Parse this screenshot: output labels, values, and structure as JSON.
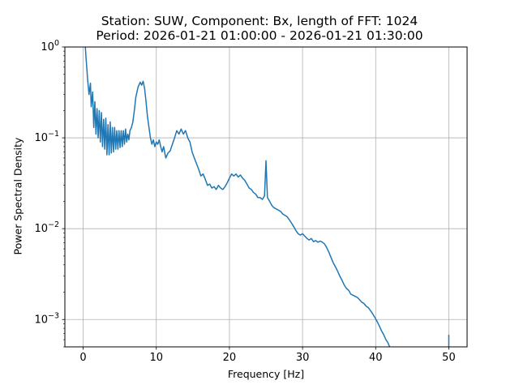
{
  "chart_data": {
    "type": "line",
    "title": "Station: SUW, Component: Bx, length of FFT: 1024",
    "subtitle": "Period: 2026-01-21 01:00:00 - 2026-01-21 01:30:00",
    "xlabel": "Frequency [Hz]",
    "ylabel": "Power Spectral Density",
    "xlim": [
      -2.5,
      52.5
    ],
    "ylim": [
      0.0005,
      1
    ],
    "yscale": "log",
    "grid": true,
    "x_ticks": [
      {
        "value": 0,
        "label": "0"
      },
      {
        "value": 10,
        "label": "10"
      },
      {
        "value": 20,
        "label": "20"
      },
      {
        "value": 30,
        "label": "30"
      },
      {
        "value": 40,
        "label": "40"
      },
      {
        "value": 50,
        "label": "50"
      }
    ],
    "y_ticks": [
      {
        "value": 1,
        "base": "10",
        "exp": "0"
      },
      {
        "value": 0.1,
        "base": "10",
        "exp": "−1"
      },
      {
        "value": 0.01,
        "base": "10",
        "exp": "−2"
      },
      {
        "value": 0.001,
        "base": "10",
        "exp": "−3"
      }
    ],
    "color": "#1f77b4",
    "series": [
      {
        "segments": [
          [
            [
              0.3,
              1.0
            ],
            [
              0.4,
              0.75
            ],
            [
              0.6,
              0.45
            ],
            [
              0.8,
              0.3
            ],
            [
              1.0,
              0.4
            ],
            [
              1.1,
              0.22
            ],
            [
              1.3,
              0.32
            ],
            [
              1.45,
              0.13
            ],
            [
              1.6,
              0.25
            ],
            [
              1.75,
              0.11
            ],
            [
              1.9,
              0.21
            ],
            [
              2.05,
              0.1
            ],
            [
              2.2,
              0.2
            ],
            [
              2.35,
              0.09
            ],
            [
              2.5,
              0.19
            ],
            [
              2.65,
              0.08
            ],
            [
              2.8,
              0.16
            ],
            [
              2.95,
              0.075
            ],
            [
              3.1,
              0.165
            ],
            [
              3.25,
              0.065
            ],
            [
              3.4,
              0.14
            ],
            [
              3.55,
              0.065
            ],
            [
              3.7,
              0.15
            ],
            [
              3.85,
              0.068
            ],
            [
              4.0,
              0.13
            ],
            [
              4.15,
              0.07
            ],
            [
              4.3,
              0.13
            ],
            [
              4.45,
              0.075
            ],
            [
              4.6,
              0.12
            ],
            [
              4.75,
              0.075
            ],
            [
              4.9,
              0.12
            ],
            [
              5.05,
              0.078
            ],
            [
              5.2,
              0.12
            ],
            [
              5.35,
              0.08
            ],
            [
              5.5,
              0.12
            ],
            [
              5.65,
              0.085
            ],
            [
              5.8,
              0.125
            ],
            [
              5.95,
              0.09
            ],
            [
              6.1,
              0.11
            ],
            [
              6.25,
              0.095
            ],
            [
              6.4,
              0.12
            ],
            [
              6.6,
              0.13
            ],
            [
              6.8,
              0.15
            ],
            [
              7.0,
              0.2
            ],
            [
              7.2,
              0.28
            ],
            [
              7.5,
              0.36
            ],
            [
              7.8,
              0.41
            ],
            [
              8.0,
              0.38
            ],
            [
              8.2,
              0.42
            ],
            [
              8.4,
              0.35
            ],
            [
              8.6,
              0.25
            ],
            [
              8.8,
              0.17
            ],
            [
              9.0,
              0.13
            ],
            [
              9.2,
              0.1
            ],
            [
              9.4,
              0.085
            ],
            [
              9.6,
              0.095
            ],
            [
              9.8,
              0.08
            ],
            [
              10.0,
              0.09
            ],
            [
              10.2,
              0.085
            ],
            [
              10.4,
              0.095
            ],
            [
              10.6,
              0.08
            ],
            [
              10.8,
              0.07
            ],
            [
              11.0,
              0.08
            ],
            [
              11.3,
              0.06
            ],
            [
              11.6,
              0.068
            ],
            [
              11.9,
              0.072
            ],
            [
              12.2,
              0.085
            ],
            [
              12.5,
              0.1
            ],
            [
              12.8,
              0.12
            ],
            [
              13.1,
              0.11
            ],
            [
              13.4,
              0.125
            ],
            [
              13.7,
              0.11
            ],
            [
              14.0,
              0.12
            ],
            [
              14.3,
              0.1
            ],
            [
              14.6,
              0.09
            ],
            [
              14.9,
              0.07
            ],
            [
              15.2,
              0.06
            ],
            [
              15.5,
              0.052
            ],
            [
              15.8,
              0.045
            ],
            [
              16.1,
              0.038
            ],
            [
              16.4,
              0.04
            ],
            [
              16.7,
              0.035
            ],
            [
              17.0,
              0.03
            ],
            [
              17.3,
              0.031
            ],
            [
              17.6,
              0.028
            ],
            [
              17.9,
              0.029
            ],
            [
              18.2,
              0.027
            ],
            [
              18.5,
              0.03
            ],
            [
              18.8,
              0.028
            ],
            [
              19.1,
              0.027
            ],
            [
              19.4,
              0.029
            ],
            [
              19.7,
              0.032
            ],
            [
              20.0,
              0.036
            ],
            [
              20.3,
              0.04
            ],
            [
              20.6,
              0.038
            ],
            [
              20.9,
              0.04
            ],
            [
              21.2,
              0.037
            ],
            [
              21.5,
              0.039
            ],
            [
              21.8,
              0.036
            ],
            [
              22.1,
              0.034
            ],
            [
              22.4,
              0.031
            ],
            [
              22.7,
              0.028
            ],
            [
              23.0,
              0.027
            ],
            [
              23.3,
              0.025
            ],
            [
              23.6,
              0.024
            ],
            [
              23.9,
              0.022
            ],
            [
              24.2,
              0.022
            ],
            [
              24.5,
              0.021
            ],
            [
              24.8,
              0.023
            ],
            [
              25.0,
              0.056
            ],
            [
              25.2,
              0.022
            ],
            [
              25.5,
              0.02
            ],
            [
              25.8,
              0.018
            ],
            [
              26.1,
              0.017
            ],
            [
              26.4,
              0.0165
            ],
            [
              26.7,
              0.016
            ],
            [
              27.0,
              0.0155
            ],
            [
              27.3,
              0.0145
            ],
            [
              27.6,
              0.014
            ],
            [
              27.9,
              0.0135
            ],
            [
              28.2,
              0.0125
            ],
            [
              28.5,
              0.0115
            ],
            [
              28.8,
              0.0105
            ],
            [
              29.1,
              0.0095
            ],
            [
              29.4,
              0.0088
            ],
            [
              29.7,
              0.0085
            ],
            [
              30.0,
              0.0088
            ],
            [
              30.3,
              0.0083
            ],
            [
              30.6,
              0.0078
            ],
            [
              30.9,
              0.0075
            ],
            [
              31.2,
              0.0078
            ],
            [
              31.5,
              0.0072
            ],
            [
              31.8,
              0.0074
            ],
            [
              32.1,
              0.0071
            ],
            [
              32.4,
              0.0073
            ],
            [
              32.7,
              0.0071
            ],
            [
              33.0,
              0.0068
            ],
            [
              33.3,
              0.0062
            ],
            [
              33.6,
              0.0055
            ],
            [
              33.9,
              0.0048
            ],
            [
              34.2,
              0.0042
            ],
            [
              34.5,
              0.0038
            ],
            [
              34.8,
              0.0034
            ],
            [
              35.1,
              0.003
            ],
            [
              35.4,
              0.0027
            ],
            [
              35.7,
              0.0024
            ],
            [
              36.0,
              0.0022
            ],
            [
              36.3,
              0.0021
            ],
            [
              36.6,
              0.0019
            ],
            [
              36.9,
              0.00185
            ],
            [
              37.2,
              0.0018
            ],
            [
              37.5,
              0.00175
            ],
            [
              37.8,
              0.00165
            ],
            [
              38.1,
              0.00155
            ],
            [
              38.4,
              0.0015
            ],
            [
              38.7,
              0.0014
            ],
            [
              39.0,
              0.00135
            ],
            [
              39.3,
              0.00125
            ],
            [
              39.6,
              0.00115
            ],
            [
              39.9,
              0.00105
            ],
            [
              40.2,
              0.00095
            ],
            [
              40.5,
              0.00085
            ],
            [
              40.8,
              0.00075
            ],
            [
              41.1,
              0.00068
            ],
            [
              41.4,
              0.0006
            ],
            [
              41.7,
              0.00055
            ],
            [
              41.9,
              0.0005
            ]
          ],
          [
            [
              50.0,
              0.0005
            ],
            [
              50.0,
              0.00068
            ]
          ]
        ]
      }
    ]
  }
}
